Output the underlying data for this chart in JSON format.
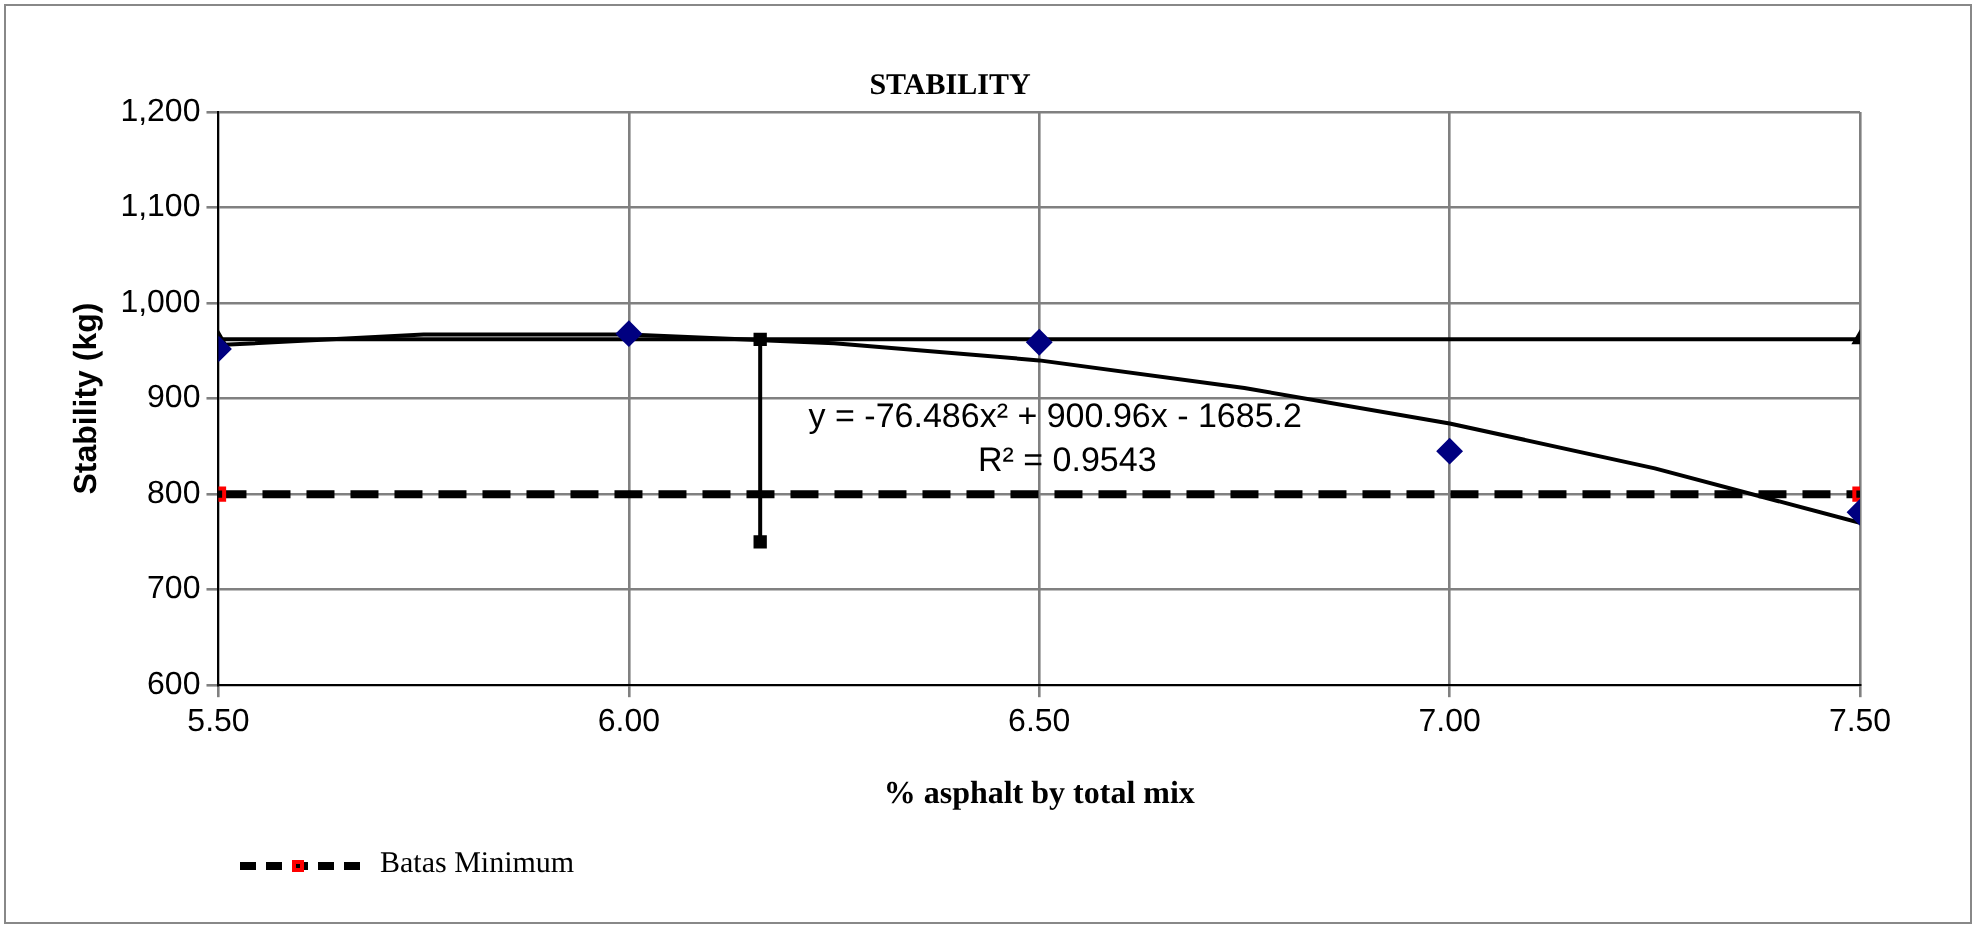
{
  "chart_data": {
    "type": "scatter",
    "title": "STABILITY",
    "xlabel": "% asphalt by total mix",
    "ylabel": "Stability (kg)",
    "xlim": [
      5.5,
      7.5
    ],
    "xticks": [
      {
        "value": 5.5,
        "label": "5.50"
      },
      {
        "value": 6,
        "label": "6.00"
      },
      {
        "value": 6.5,
        "label": "6.50"
      },
      {
        "value": 7,
        "label": "7.00"
      },
      {
        "value": 7.5,
        "label": "7.50"
      }
    ],
    "ylim": [
      600,
      1200
    ],
    "yticks": [
      600,
      700,
      800,
      900,
      {
        "value": 1000,
        "label": "1,000"
      },
      {
        "value": 1100,
        "label": "1,100"
      },
      {
        "value": 1200,
        "label": "1,200"
      }
    ],
    "grid": true,
    "legend": "bottom left",
    "annotations": [
      "y = -76.486x² + 900.96x - 1685.2",
      "R² = 0.9543"
    ],
    "series": [
      {
        "type": "scatter",
        "marker": "diamond",
        "color": "#000080",
        "x": [
          5.5,
          6,
          6.5,
          7,
          7.5
        ],
        "values": [
          952,
          968,
          959,
          845,
          781
        ]
      },
      {
        "type": "line",
        "marker": "none",
        "color": "#000000",
        "x": [
          5.5,
          5.75,
          6,
          6.25,
          6.5,
          6.75,
          7,
          7.25,
          7.5
        ],
        "values": [
          956,
          967,
          967,
          958,
          940,
          911,
          874,
          827,
          770
        ]
      },
      {
        "type": "line",
        "marker": "triangle",
        "color": "#000000",
        "x": [
          5.5,
          7.5
        ],
        "values": [
          962,
          962
        ]
      },
      {
        "type": "line",
        "marker": "square",
        "color": "#000000",
        "x": [
          6.16,
          6.16
        ],
        "values": [
          962,
          750
        ]
      },
      {
        "type": "line",
        "name": "Batas Minimum",
        "marker": "square",
        "line_style": "dashed",
        "color": "#000000",
        "colors": [
          "#ff0000",
          "#ff0000"
        ],
        "x": [
          5.5,
          7.5
        ],
        "values": [
          800,
          800
        ]
      }
    ]
  }
}
